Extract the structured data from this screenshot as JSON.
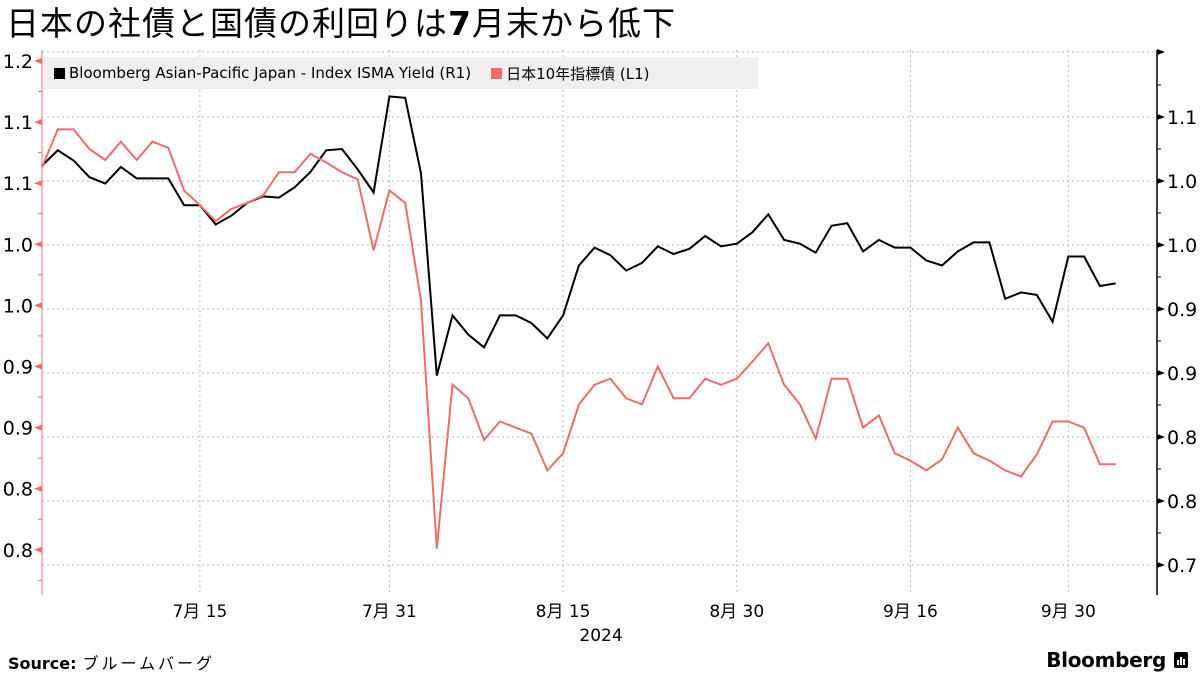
{
  "title": {
    "prefix": "日本の社債と国債の利回りは",
    "bold": "7",
    "suffix": "月末から低下"
  },
  "legend": [
    {
      "label": "Bloomberg Asian-Pacific Japan - Index ISMA Yield (R1)",
      "color": "#000000"
    },
    {
      "label": "日本10年指標債 (L1)",
      "color": "#f06b6b"
    }
  ],
  "footer": {
    "source_label": "Source:",
    "source_value": "ブルームバーグ",
    "brand": "Bloomberg"
  },
  "colors": {
    "black_series": "#000000",
    "red_series": "#f06b6b",
    "left_axis": "#f4a0a8",
    "grid": "#bbbbbb"
  },
  "chart_data": {
    "type": "line",
    "title": "日本の社債と国債の利回りは7月末から低下",
    "xlabel": "2024",
    "ylabel_left": "",
    "ylabel_right": "",
    "x_ticks": [
      {
        "label": "7月 15",
        "date": "2024-07-15"
      },
      {
        "label": "7月 31",
        "date": "2024-07-31"
      },
      {
        "label": "8月 15",
        "date": "2024-08-15"
      },
      {
        "label": "8月 30",
        "date": "2024-08-30"
      },
      {
        "label": "9月 16",
        "date": "2024-09-16"
      },
      {
        "label": "9月 30",
        "date": "2024-09-30"
      }
    ],
    "year_label": "2024",
    "left_axis": {
      "ylim": [
        0.775,
        1.205
      ],
      "ticks": [
        1.2,
        1.15,
        1.1,
        1.05,
        1.0,
        0.95,
        0.9,
        0.85,
        0.8
      ],
      "tick_labels": [
        "1.2",
        "1.1",
        "1.1",
        "1.0",
        "1.0",
        "0.9",
        "0.9",
        "0.8",
        "0.8"
      ]
    },
    "right_axis": {
      "ylim": [
        0.73,
        1.15
      ],
      "ticks": [
        1.1,
        1.05,
        1.0,
        0.95,
        0.9,
        0.85,
        0.8,
        0.75
      ],
      "tick_labels": [
        "1.1",
        "1.0",
        "1.0",
        "0.9",
        "0.9",
        "0.8",
        "0.8",
        "0.7"
      ]
    },
    "grid": true,
    "legend_position": "top-left",
    "x": [
      "2024-07-01",
      "2024-07-02",
      "2024-07-03",
      "2024-07-04",
      "2024-07-05",
      "2024-07-08",
      "2024-07-09",
      "2024-07-10",
      "2024-07-11",
      "2024-07-12",
      "2024-07-15",
      "2024-07-16",
      "2024-07-17",
      "2024-07-18",
      "2024-07-19",
      "2024-07-22",
      "2024-07-23",
      "2024-07-24",
      "2024-07-25",
      "2024-07-26",
      "2024-07-29",
      "2024-07-30",
      "2024-07-31",
      "2024-08-01",
      "2024-08-02",
      "2024-08-05",
      "2024-08-06",
      "2024-08-07",
      "2024-08-08",
      "2024-08-09",
      "2024-08-12",
      "2024-08-13",
      "2024-08-14",
      "2024-08-15",
      "2024-08-16",
      "2024-08-19",
      "2024-08-20",
      "2024-08-21",
      "2024-08-22",
      "2024-08-23",
      "2024-08-26",
      "2024-08-27",
      "2024-08-28",
      "2024-08-29",
      "2024-08-30",
      "2024-09-02",
      "2024-09-03",
      "2024-09-04",
      "2024-09-05",
      "2024-09-06",
      "2024-09-09",
      "2024-09-10",
      "2024-09-11",
      "2024-09-12",
      "2024-09-13",
      "2024-09-16",
      "2024-09-17",
      "2024-09-18",
      "2024-09-19",
      "2024-09-20",
      "2024-09-23",
      "2024-09-24",
      "2024-09-25",
      "2024-09-26",
      "2024-09-27",
      "2024-09-30",
      "2024-10-01",
      "2024-10-02",
      "2024-10-03"
    ],
    "series": [
      {
        "name": "Bloomberg Asian-Pacific Japan - Index ISMA Yield (R1)",
        "axis": "right",
        "color": "#000000",
        "values": [
          1.062,
          1.074,
          1.066,
          1.053,
          1.048,
          1.061,
          1.052,
          1.052,
          1.052,
          1.031,
          1.031,
          1.016,
          1.023,
          1.033,
          1.038,
          1.037,
          1.045,
          1.057,
          1.074,
          1.075,
          1.059,
          1.041,
          1.116,
          1.115,
          1.056,
          0.898,
          0.945,
          0.93,
          0.92,
          0.945,
          0.945,
          0.939,
          0.927,
          0.945,
          0.984,
          0.998,
          0.992,
          0.98,
          0.986,
          0.999,
          0.993,
          0.997,
          1.007,
          0.999,
          1.001,
          1.01,
          1.024,
          1.004,
          1.001,
          0.994,
          1.015,
          1.017,
          0.995,
          1.004,
          0.998,
          0.998,
          0.988,
          0.984,
          0.995,
          1.002,
          1.002,
          0.958,
          0.963,
          0.961,
          0.94,
          0.991,
          0.991,
          0.968,
          0.97
        ]
      },
      {
        "name": "日本10年指標債 (L1)",
        "axis": "left",
        "color": "#f06b6b",
        "values": [
          1.113,
          1.144,
          1.144,
          1.128,
          1.119,
          1.134,
          1.119,
          1.134,
          1.129,
          1.094,
          1.082,
          1.069,
          1.079,
          1.084,
          1.09,
          1.109,
          1.109,
          1.124,
          1.117,
          1.109,
          1.103,
          1.045,
          1.094,
          1.084,
          1.004,
          0.801,
          0.935,
          0.924,
          0.89,
          0.905,
          0.9,
          0.895,
          0.865,
          0.879,
          0.919,
          0.935,
          0.94,
          0.924,
          0.919,
          0.95,
          0.924,
          0.924,
          0.94,
          0.935,
          0.94,
          0.954,
          0.969,
          0.935,
          0.919,
          0.891,
          0.94,
          0.94,
          0.9,
          0.91,
          0.879,
          0.873,
          0.865,
          0.874,
          0.9,
          0.879,
          0.873,
          0.865,
          0.86,
          0.878,
          0.905,
          0.905,
          0.9,
          0.87,
          0.87
        ]
      }
    ]
  }
}
